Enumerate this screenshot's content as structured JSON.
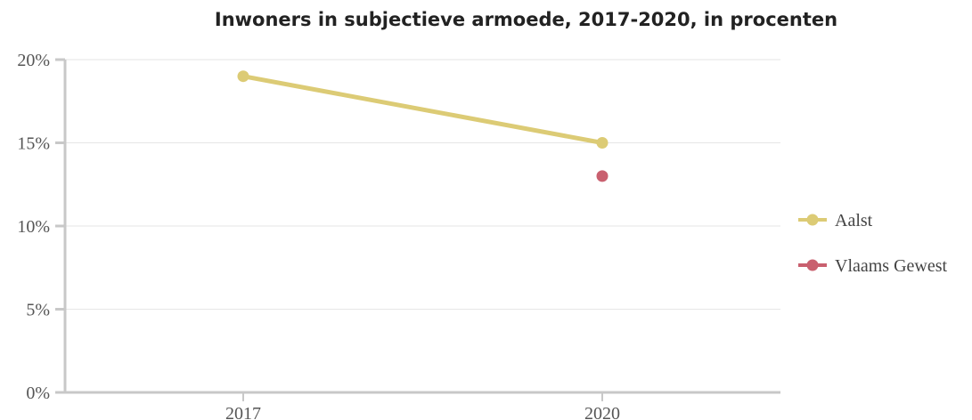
{
  "chart_data": {
    "type": "line",
    "title": "Inwoners in subjectieve armoede, 2017-2020, in procenten",
    "x": [
      "2017",
      "2020"
    ],
    "ylim": [
      0,
      20
    ],
    "yticks": [
      0,
      5,
      10,
      15,
      20
    ],
    "ytick_labels": [
      "0%",
      "5%",
      "10%",
      "15%",
      "20%"
    ],
    "grid": true,
    "legend_position": "right",
    "series": [
      {
        "name": "Aalst",
        "color": "#dccb75",
        "values": [
          19,
          15
        ]
      },
      {
        "name": "Vlaams Gewest",
        "color": "#c9606f",
        "values": [
          null,
          13
        ]
      }
    ]
  }
}
